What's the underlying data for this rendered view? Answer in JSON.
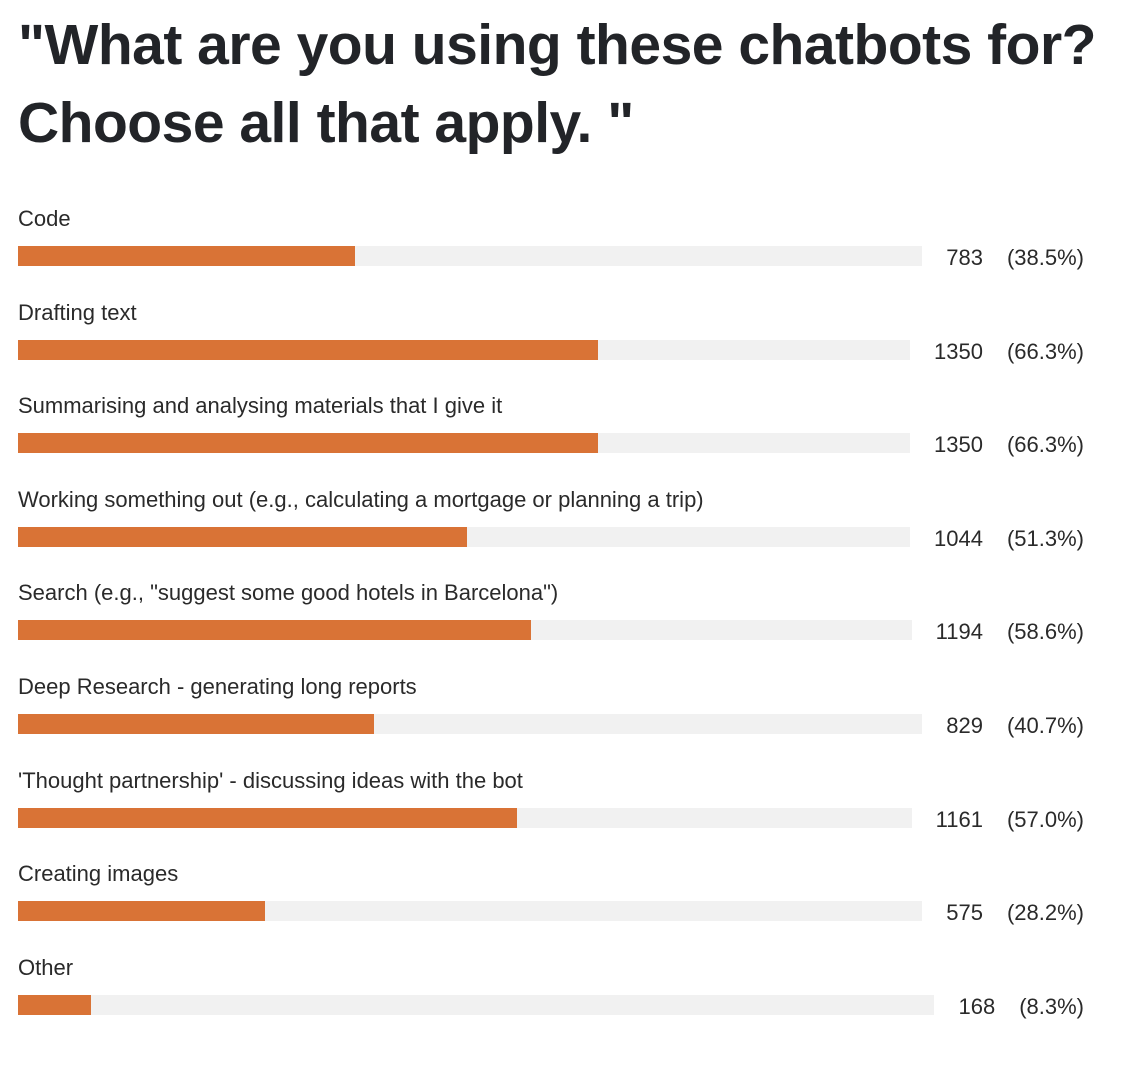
{
  "chart_data": {
    "type": "bar",
    "orientation": "horizontal",
    "title": "\"What are you using these chatbots for? Choose all that apply. \"",
    "categories": [
      "Code",
      "Drafting text",
      "Summarising and analysing materials that I give it",
      "Working something out (e.g., calculating a mortgage or planning a trip)",
      "Search (e.g., \"suggest some good hotels in Barcelona\")",
      "Deep Research - generating long reports",
      "'Thought partnership' - discussing ideas with the bot",
      "Creating images",
      "Other"
    ],
    "values": [
      783,
      1350,
      1350,
      1044,
      1194,
      829,
      1161,
      575,
      168
    ],
    "percent_labels": [
      "(38.5%)",
      "(66.3%)",
      "(66.3%)",
      "(51.3%)",
      "(58.6%)",
      "(40.7%)",
      "(57.0%)",
      "(28.2%)",
      "(8.3%)"
    ],
    "percentages": [
      38.5,
      66.3,
      66.3,
      51.3,
      58.6,
      40.7,
      57.0,
      28.2,
      8.3
    ],
    "xlim": [
      0,
      100
    ],
    "grid": false,
    "legend": "none",
    "colors": {
      "bar": "#d97336",
      "track": "#f1f1f1",
      "text": "#2a2a2a",
      "title": "#222428"
    }
  }
}
